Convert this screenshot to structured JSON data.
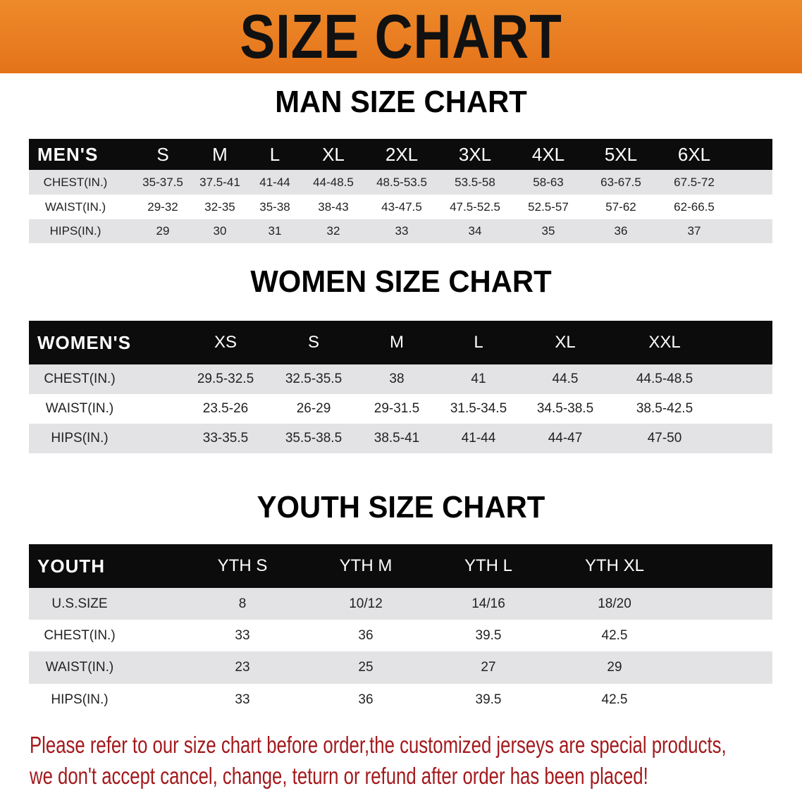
{
  "banner": {
    "title": "SIZE CHART",
    "color": "#e97d20"
  },
  "men": {
    "heading": "MAN SIZE CHART",
    "columns": [
      "MEN'S",
      "S",
      "M",
      "L",
      "XL",
      "2XL",
      "3XL",
      "4XL",
      "5XL",
      "6XL"
    ],
    "rows": [
      [
        "CHEST(IN.)",
        "35-37.5",
        "37.5-41",
        "41-44",
        "44-48.5",
        "48.5-53.5",
        "53.5-58",
        "58-63",
        "63-67.5",
        "67.5-72"
      ],
      [
        "WAIST(IN.)",
        "29-32",
        "32-35",
        "35-38",
        "38-43",
        "43-47.5",
        "47.5-52.5",
        "52.5-57",
        "57-62",
        "62-66.5"
      ],
      [
        "HIPS(IN.)",
        "29",
        "30",
        "31",
        "32",
        "33",
        "34",
        "35",
        "36",
        "37"
      ]
    ]
  },
  "women": {
    "heading": "WOMEN SIZE CHART",
    "columns": [
      "WOMEN'S",
      "XS",
      "S",
      "M",
      "L",
      "XL",
      "XXL"
    ],
    "rows": [
      [
        "CHEST(IN.)",
        "29.5-32.5",
        "32.5-35.5",
        "38",
        "41",
        "44.5",
        "44.5-48.5"
      ],
      [
        "WAIST(IN.)",
        "23.5-26",
        "26-29",
        "29-31.5",
        "31.5-34.5",
        "34.5-38.5",
        "38.5-42.5"
      ],
      [
        "HIPS(IN.)",
        "33-35.5",
        "35.5-38.5",
        "38.5-41",
        "41-44",
        "44-47",
        "47-50"
      ]
    ]
  },
  "youth": {
    "heading": "YOUTH SIZE CHART",
    "columns": [
      "YOUTH",
      "YTH S",
      "YTH M",
      "YTH L",
      "YTH XL"
    ],
    "rows": [
      [
        "U.S.SIZE",
        "8",
        "10/12",
        "14/16",
        "18/20"
      ],
      [
        "CHEST(IN.)",
        "33",
        "36",
        "39.5",
        "42.5"
      ],
      [
        "WAIST(IN.)",
        "23",
        "25",
        "27",
        "29"
      ],
      [
        "HIPS(IN.)",
        "33",
        "36",
        "39.5",
        "42.5"
      ]
    ]
  },
  "notice": {
    "line1": "Please refer to our size chart before order,the customized jerseys are special products,",
    "line2": "we don't accept cancel, change, teturn or refund after order has been placed!",
    "color": "#a3191c"
  }
}
